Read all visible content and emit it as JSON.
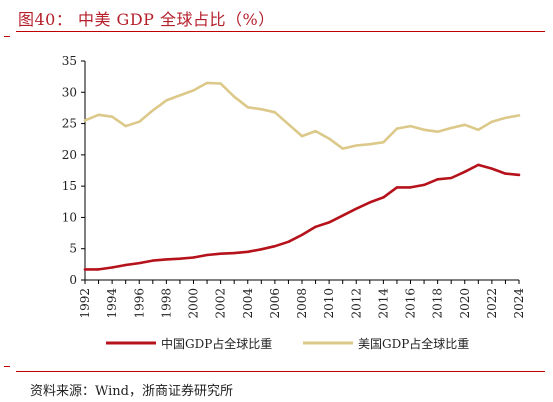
{
  "header": {
    "title": "图40：  中美 GDP 全球占比（%）"
  },
  "footer": {
    "source": "资料来源：Wind，浙商证券研究所"
  },
  "chart_data": {
    "type": "line",
    "title": "图40：  中美 GDP 全球占比（%）",
    "xlabel": "",
    "ylabel": "",
    "x": [
      1992,
      1993,
      1994,
      1995,
      1996,
      1997,
      1998,
      1999,
      2000,
      2001,
      2002,
      2003,
      2004,
      2005,
      2006,
      2007,
      2008,
      2009,
      2010,
      2011,
      2012,
      2013,
      2014,
      2015,
      2016,
      2017,
      2018,
      2019,
      2020,
      2021,
      2022,
      2023,
      2024
    ],
    "x_ticks": [
      "1992",
      "1994",
      "1996",
      "1998",
      "2000",
      "2002",
      "2004",
      "2006",
      "2008",
      "2010",
      "2012",
      "2014",
      "2016",
      "2018",
      "2020",
      "2022",
      "2024"
    ],
    "y_ticks": [
      "0",
      "5",
      "10",
      "15",
      "20",
      "25",
      "30",
      "35"
    ],
    "ylim": [
      0,
      35
    ],
    "grid": false,
    "legend_position": "bottom",
    "series": [
      {
        "name": "中国GDP占全球比重",
        "color": "#b5121b",
        "values": [
          1.7,
          1.7,
          2.0,
          2.4,
          2.7,
          3.1,
          3.3,
          3.4,
          3.6,
          4.0,
          4.2,
          4.3,
          4.5,
          4.9,
          5.4,
          6.1,
          7.2,
          8.5,
          9.2,
          10.3,
          11.4,
          12.4,
          13.2,
          14.8,
          14.8,
          15.2,
          16.1,
          16.3,
          17.3,
          18.4,
          17.8,
          17.0,
          16.8
        ]
      },
      {
        "name": "美国GDP占全球比重",
        "color": "#dcc98a",
        "values": [
          25.5,
          26.4,
          26.1,
          24.6,
          25.3,
          27.1,
          28.7,
          29.5,
          30.3,
          31.5,
          31.4,
          29.3,
          27.6,
          27.3,
          26.8,
          24.9,
          23.0,
          23.8,
          22.6,
          21.0,
          21.5,
          21.7,
          22.0,
          24.2,
          24.6,
          24.0,
          23.7,
          24.3,
          24.8,
          24.0,
          25.3,
          25.9,
          26.3
        ]
      }
    ]
  }
}
